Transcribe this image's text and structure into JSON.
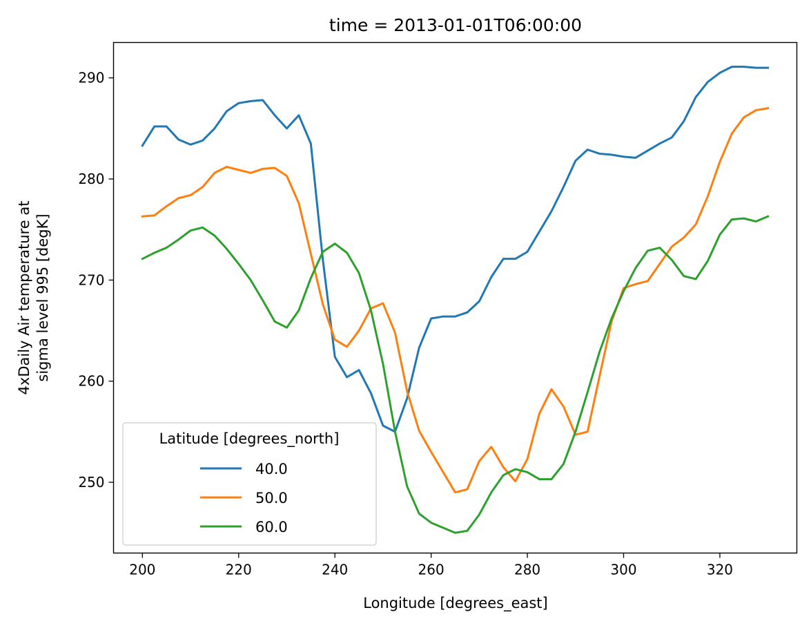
{
  "chart_data": {
    "type": "line",
    "title": "time = 2013-01-01T06:00:00",
    "xlabel": "Longitude [degrees_east]",
    "ylabel_lines": [
      "4xDaily Air temperature at",
      "sigma level 995 [degK]"
    ],
    "xlim": [
      194,
      336
    ],
    "ylim": [
      243,
      293.5
    ],
    "xticks": [
      200,
      220,
      240,
      260,
      280,
      300,
      320
    ],
    "yticks": [
      250,
      260,
      270,
      280,
      290
    ],
    "grid": false,
    "legend": {
      "title": "Latitude [degrees_north]",
      "position": "lower-left"
    },
    "x": [
      200,
      202.5,
      205,
      207.5,
      210,
      212.5,
      215,
      217.5,
      220,
      222.5,
      225,
      227.5,
      230,
      232.5,
      235,
      237.5,
      240,
      242.5,
      245,
      247.5,
      250,
      252.5,
      255,
      257.5,
      260,
      262.5,
      265,
      267.5,
      270,
      272.5,
      275,
      277.5,
      280,
      282.5,
      285,
      287.5,
      290,
      292.5,
      295,
      297.5,
      300,
      302.5,
      305,
      307.5,
      310,
      312.5,
      315,
      317.5,
      320,
      322.5,
      325,
      327.5,
      330
    ],
    "series": [
      {
        "name": "40.0",
        "color": "#1f77b4",
        "values": [
          283.3,
          285.2,
          285.2,
          283.9,
          283.4,
          283.8,
          285.0,
          286.7,
          287.5,
          287.7,
          287.8,
          286.3,
          285.0,
          286.3,
          283.5,
          272.0,
          262.4,
          260.4,
          261.1,
          258.8,
          255.6,
          255.0,
          258.3,
          263.3,
          266.2,
          266.4,
          266.4,
          266.8,
          267.9,
          270.3,
          272.1,
          272.1,
          272.8,
          274.8,
          276.8,
          279.2,
          281.8,
          282.9,
          282.5,
          282.4,
          282.2,
          282.1,
          282.8,
          283.5,
          284.1,
          285.7,
          288.1,
          289.6,
          290.5,
          291.1,
          291.1,
          291.0,
          291.0
        ]
      },
      {
        "name": "50.0",
        "color": "#ff7f0e",
        "values": [
          276.3,
          276.4,
          277.3,
          278.1,
          278.4,
          279.2,
          280.6,
          281.2,
          280.9,
          280.6,
          281.0,
          281.1,
          280.3,
          277.6,
          272.6,
          267.6,
          264.1,
          263.4,
          265.0,
          267.2,
          267.7,
          264.8,
          259.0,
          255.1,
          253.0,
          251.0,
          249.0,
          249.3,
          252.1,
          253.5,
          251.5,
          250.1,
          252.3,
          256.8,
          259.2,
          257.5,
          254.7,
          255.0,
          260.5,
          265.9,
          269.2,
          269.6,
          269.9,
          271.6,
          273.3,
          274.2,
          275.5,
          278.3,
          281.7,
          284.5,
          286.1,
          286.8,
          287.0
        ]
      },
      {
        "name": "60.0",
        "color": "#2ca02c",
        "values": [
          272.1,
          272.7,
          273.2,
          274.0,
          274.9,
          275.2,
          274.4,
          273.1,
          271.6,
          270.0,
          268.0,
          265.9,
          265.3,
          267.0,
          270.2,
          272.8,
          273.6,
          272.7,
          270.7,
          267.0,
          261.7,
          255.0,
          249.6,
          246.9,
          246.0,
          245.5,
          245.0,
          245.2,
          246.8,
          249.0,
          250.7,
          251.3,
          251.0,
          250.3,
          250.3,
          251.8,
          255.0,
          258.9,
          262.9,
          266.2,
          268.9,
          271.2,
          272.9,
          273.2,
          272.0,
          270.4,
          270.1,
          271.9,
          274.5,
          276.0,
          276.1,
          275.8,
          276.3
        ]
      }
    ]
  }
}
